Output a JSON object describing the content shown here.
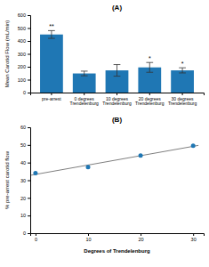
{
  "chart_data": [
    {
      "type": "bar",
      "title": "(A)",
      "categories": [
        "pre-arrest",
        "0 degrees\nTrendelenburg",
        "10 degrees\nTrendelenburg",
        "20 degrees\nTrendelenburg",
        "30 degrees\nTrendelenburg"
      ],
      "values": [
        450,
        148,
        172,
        195,
        172
      ],
      "errors": [
        30,
        18,
        45,
        38,
        20
      ],
      "annotations": [
        "**",
        null,
        null,
        "*",
        "*"
      ],
      "ylabel": "Mean Carotid Flow (mL/min)",
      "ylim": [
        0,
        600
      ],
      "yticks": [
        0,
        100,
        200,
        300,
        400,
        500,
        600
      ]
    },
    {
      "type": "scatter",
      "title": "(B)",
      "xlabel": "Degrees of Trendelenburg",
      "ylabel": "% pre-arrest carotid flow",
      "xlim": [
        -1,
        32
      ],
      "ylim": [
        0,
        60
      ],
      "xticks": [
        0,
        10,
        20,
        30
      ],
      "yticks": [
        0,
        10,
        20,
        30,
        40,
        50,
        60
      ],
      "series": [
        {
          "type": "line",
          "x": [
            -1,
            31
          ],
          "values": [
            32.77,
            49.73
          ]
        },
        {
          "type": "scatter",
          "x": [
            0,
            10,
            20,
            30
          ],
          "values": [
            34.0,
            37.5,
            44.0,
            49.5
          ]
        }
      ]
    }
  ]
}
